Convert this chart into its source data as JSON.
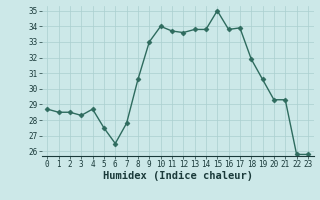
{
  "x": [
    0,
    1,
    2,
    3,
    4,
    5,
    6,
    7,
    8,
    9,
    10,
    11,
    12,
    13,
    14,
    15,
    16,
    17,
    18,
    19,
    20,
    21,
    22,
    23
  ],
  "y": [
    28.7,
    28.5,
    28.5,
    28.3,
    28.7,
    27.5,
    26.5,
    27.8,
    30.6,
    33.0,
    34.0,
    33.7,
    33.6,
    33.8,
    33.8,
    35.0,
    33.8,
    33.9,
    31.9,
    30.6,
    29.3,
    29.3,
    25.8,
    25.8
  ],
  "line_color": "#2e6b5e",
  "marker": "D",
  "markersize": 2.5,
  "linewidth": 1.0,
  "background_color": "#cce8e8",
  "grid_color": "#aacfcf",
  "xlabel": "Humidex (Indice chaleur)",
  "xlabel_fontsize": 7.5,
  "ytick_min": 26,
  "ytick_max": 35,
  "ytick_step": 1,
  "xtick_labels": [
    "0",
    "1",
    "2",
    "3",
    "4",
    "5",
    "6",
    "7",
    "8",
    "9",
    "10",
    "11",
    "12",
    "13",
    "14",
    "15",
    "16",
    "17",
    "18",
    "19",
    "20",
    "21",
    "22",
    "23"
  ],
  "tick_fontsize": 5.5
}
